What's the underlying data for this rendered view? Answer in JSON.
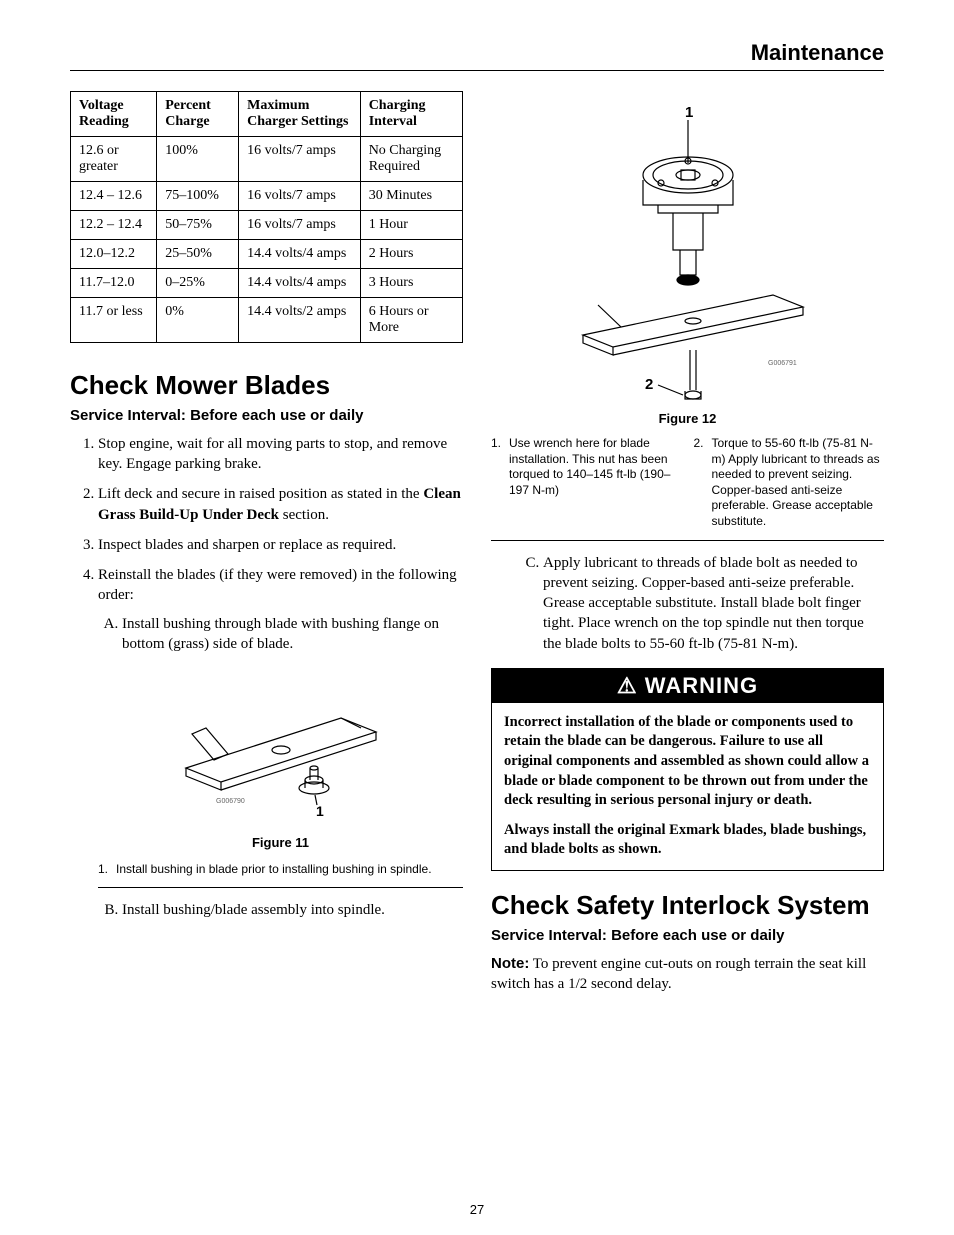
{
  "page_header": "Maintenance",
  "page_number": "27",
  "battery_table": {
    "columns": [
      "Voltage Reading",
      "Percent Charge",
      "Maximum Charger Settings",
      "Charging Interval"
    ],
    "rows": [
      [
        "12.6 or greater",
        "100%",
        "16 volts/7 amps",
        "No Charging Required"
      ],
      [
        "12.4 – 12.6",
        "75–100%",
        "16 volts/7 amps",
        "30 Minutes"
      ],
      [
        "12.2 – 12.4",
        "50–75%",
        "16 volts/7 amps",
        "1 Hour"
      ],
      [
        "12.0–12.2",
        "25–50%",
        "14.4 volts/4 amps",
        "2 Hours"
      ],
      [
        "11.7–12.0",
        "0–25%",
        "14.4 volts/4 amps",
        "3 Hours"
      ],
      [
        "11.7 or less",
        "0%",
        "14.4 volts/2 amps",
        "6 Hours or More"
      ]
    ]
  },
  "section1": {
    "title": "Check Mower Blades",
    "interval": "Service Interval: Before each use or daily",
    "steps": {
      "s1": "Stop engine, wait for all moving parts to stop, and remove key. Engage parking brake.",
      "s2a": "Lift deck and secure in raised position as stated in the ",
      "s2b": "Clean Grass Build-Up Under Deck",
      "s2c": " section.",
      "s3": "Inspect blades and sharpen or replace as required.",
      "s4": "Reinstall the blades (if they were removed) in the following order:",
      "s4a": "Install bushing through blade with bushing flange on bottom (grass) side of blade.",
      "s4b": "Install bushing/blade assembly into spindle.",
      "s4c": "Apply lubricant to threads of blade bolt as needed to prevent seizing. Copper-based anti-seize preferable. Grease acceptable substitute. Install blade bolt finger tight. Place wrench on the top spindle nut then torque the blade bolts to 55-60 ft-lb (75-81 N-m)."
    }
  },
  "figure11": {
    "caption": "Figure 11",
    "label1": "1",
    "note1_num": "1.",
    "note1": "Install bushing in blade prior to installing bushing in spindle.",
    "part_no": "G006790"
  },
  "figure12": {
    "caption": "Figure 12",
    "label1": "1",
    "label2": "2",
    "note1_num": "1.",
    "note1": "Use wrench here for blade installation. This nut has been torqued to 140–145 ft-lb (190–197 N-m)",
    "note2_num": "2.",
    "note2": "Torque to 55-60 ft-lb (75-81 N-m) Apply lubricant to threads as needed to prevent seizing. Copper-based anti-seize preferable. Grease acceptable substitute.",
    "part_no": "G006791"
  },
  "warning": {
    "header": "WARNING",
    "icon": "⚠",
    "p1": "Incorrect installation of the blade or components used to retain the blade can be dangerous. Failure to use all original components and assembled as shown could allow a blade or blade component to be thrown out from under the deck resulting in serious personal injury or death.",
    "p2": "Always install the original Exmark blades, blade bushings, and blade bolts as shown."
  },
  "section2": {
    "title": "Check Safety Interlock System",
    "interval": "Service Interval: Before each use or daily",
    "note_label": "Note:",
    "note_text": " To prevent engine cut-outs on rough terrain the seat kill switch has a 1/2 second delay."
  }
}
